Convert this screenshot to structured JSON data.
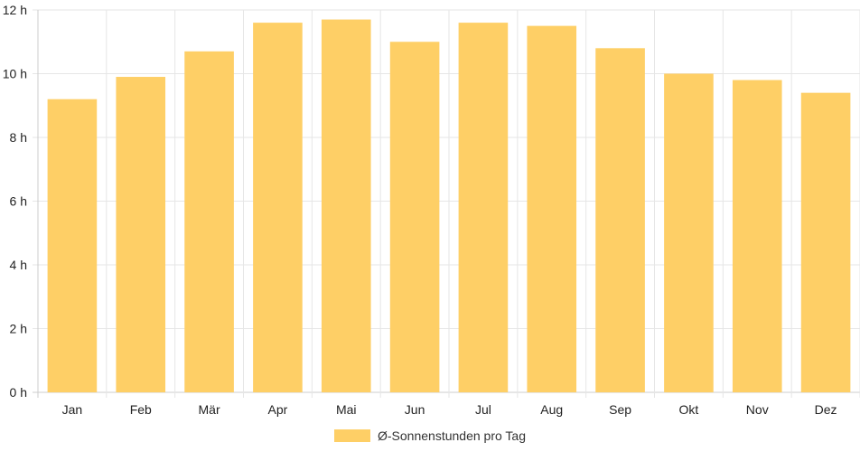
{
  "chart_data": {
    "type": "bar",
    "categories": [
      "Jan",
      "Feb",
      "Mär",
      "Apr",
      "Mai",
      "Jun",
      "Jul",
      "Aug",
      "Sep",
      "Okt",
      "Nov",
      "Dez"
    ],
    "series": [
      {
        "name": "Ø-Sonnenstunden pro Tag",
        "values": [
          9.2,
          9.9,
          10.7,
          11.6,
          11.7,
          11.0,
          11.6,
          11.5,
          10.8,
          10.0,
          9.8,
          9.4
        ]
      }
    ],
    "y_ticks": [
      "0 h",
      "2 h",
      "4 h",
      "6 h",
      "8 h",
      "10 h",
      "12 h"
    ],
    "ylim": [
      0,
      12
    ],
    "grid": true,
    "legend_position": "bottom",
    "colors": {
      "bar": "#fecf66",
      "grid": "#e6e6e6",
      "axis": "#cccccc"
    }
  }
}
